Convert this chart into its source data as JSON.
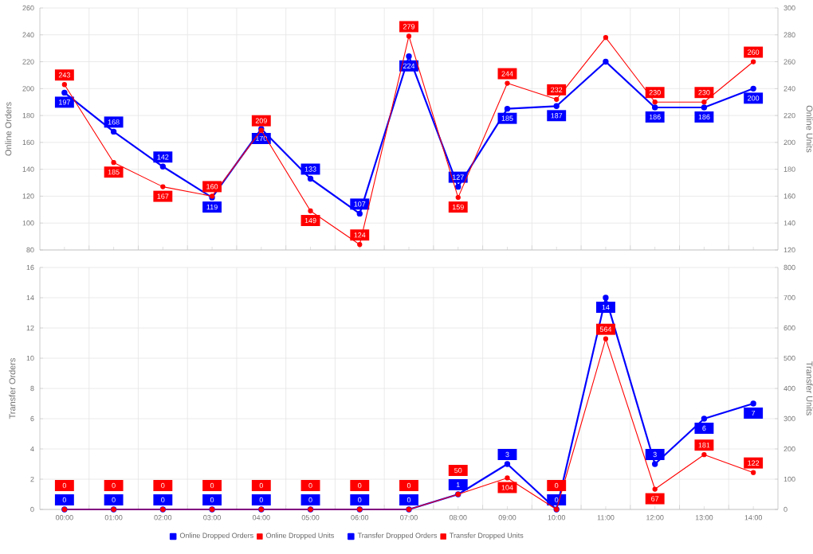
{
  "chart_data": [
    {
      "type": "line",
      "categories": [
        null,
        null,
        null,
        null,
        null,
        null,
        null,
        null,
        null,
        null,
        null,
        null,
        null,
        null,
        null
      ],
      "ylabel": "Online Orders",
      "y2label": "Online Units",
      "ylim": [
        80,
        260
      ],
      "yticks": [
        80,
        100,
        120,
        140,
        160,
        180,
        200,
        220,
        240,
        260
      ],
      "y2lim": [
        120,
        300
      ],
      "y2ticks": [
        120,
        140,
        160,
        180,
        200,
        220,
        240,
        260,
        280,
        300
      ],
      "grid": true,
      "legend": "bottom",
      "marker": "circle",
      "tick_labels": "y",
      "series": [
        {
          "name": "Online Dropped Orders",
          "color": "#0000ff",
          "values": [
            197,
            168,
            142,
            119,
            170,
            133,
            107,
            224,
            127,
            185,
            187,
            220,
            186,
            186,
            200
          ],
          "value_labels": [
            "197",
            "168",
            "142",
            "119",
            "170",
            "133",
            "107",
            "224",
            "127",
            "185",
            "187",
            null,
            "186",
            "186",
            "200"
          ]
        },
        {
          "name": "Online Dropped Units",
          "color": "#ff0000",
          "axis": "y2",
          "values": [
            243,
            185,
            167,
            160,
            209,
            149,
            124,
            279,
            159,
            244,
            232,
            278,
            230,
            230,
            260
          ],
          "value_labels": [
            "243",
            "185",
            "167",
            "160",
            "209",
            "149",
            "124",
            "279",
            "159",
            "244",
            "232",
            null,
            "230",
            "230",
            "260"
          ]
        }
      ]
    },
    {
      "type": "line",
      "categories": [
        "00:00",
        "01:00",
        "02:00",
        "03:00",
        "04:00",
        "05:00",
        "06:00",
        "07:00",
        "08:00",
        "09:00",
        "10:00",
        "11:00",
        "12:00",
        "13:00",
        "14:00"
      ],
      "ylabel": "Transfer Orders",
      "y2label": "Transfer Units",
      "ylim": [
        0,
        16
      ],
      "yticks": [
        0,
        2,
        4,
        6,
        8,
        10,
        12,
        14,
        16
      ],
      "y2lim": [
        0,
        800
      ],
      "y2ticks": [
        0,
        100,
        200,
        300,
        400,
        500,
        600,
        700,
        800
      ],
      "grid": true,
      "legend": "bottom",
      "marker": "circle",
      "series": [
        {
          "name": "Transfer Dropped Orders",
          "color": "#0000ff",
          "values": [
            0,
            0,
            0,
            0,
            0,
            0,
            0,
            0,
            1,
            3,
            0,
            14,
            3,
            6,
            7
          ],
          "value_labels": [
            "0",
            "0",
            "0",
            "0",
            "0",
            "0",
            "0",
            "0",
            "1",
            "3",
            "0",
            "14",
            "3",
            "6",
            "7"
          ]
        },
        {
          "name": "Transfer Dropped Units",
          "color": "#ff0000",
          "axis": "y2",
          "values": [
            0,
            0,
            0,
            0,
            0,
            0,
            0,
            0,
            50,
            104,
            0,
            564,
            67,
            181,
            122
          ],
          "value_labels": [
            "0",
            "0",
            "0",
            "0",
            "0",
            "0",
            "0",
            "0",
            "50",
            "104",
            "0",
            "564",
            "67",
            "181",
            "122"
          ]
        }
      ]
    }
  ]
}
